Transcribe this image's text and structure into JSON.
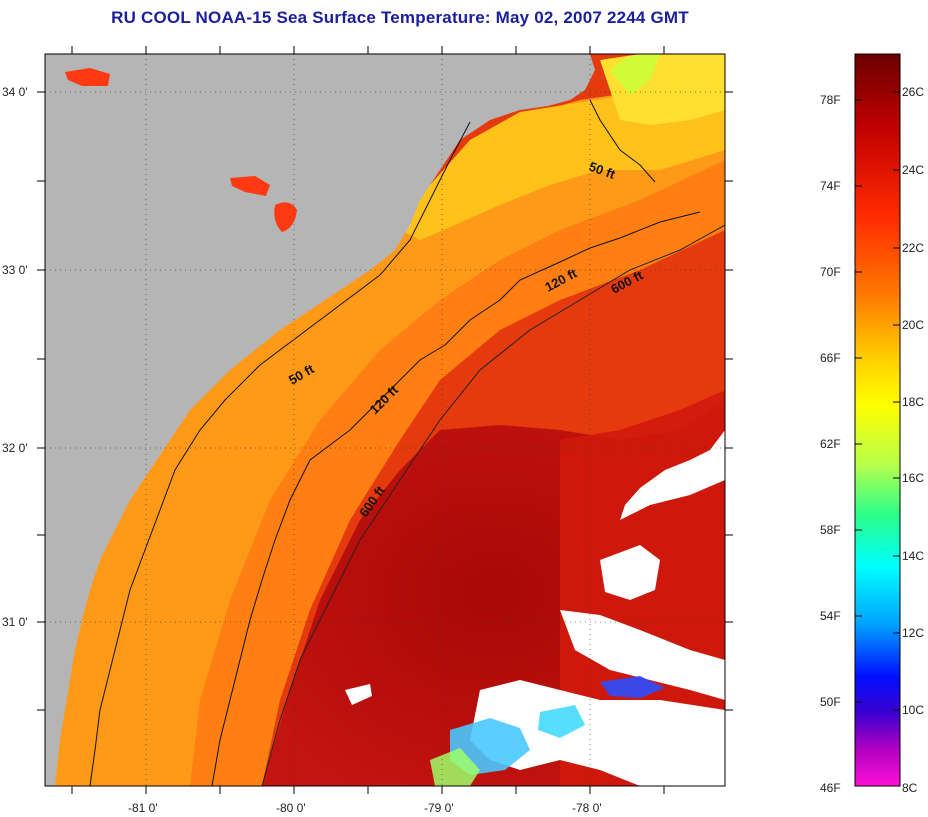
{
  "title": "RU COOL  NOAA-15  Sea Surface Temperature:  May 02, 2007 2244 GMT",
  "map": {
    "lat_labels": [
      "34 0'",
      "33 0'",
      "32 0'",
      "31 0'"
    ],
    "lon_labels": [
      "-81 0'",
      "-80 0'",
      "-79 0'",
      "-78 0'"
    ],
    "lat_range": [
      30.2,
      34.2
    ],
    "lon_range": [
      -81.7,
      -77.1
    ],
    "contours": [
      "50 ft",
      "120 ft",
      "600 ft"
    ],
    "colors": {
      "land": "#b5b5b5",
      "cloud": "#ffffff",
      "shelf_near": "#ffd21a",
      "shelf_mid": "#ff8a14",
      "gulf_stream": "#b80d0d",
      "offshore": "#e43a0e"
    }
  },
  "colorbar": {
    "fahrenheit_labels": [
      "78F",
      "74F",
      "70F",
      "66F",
      "62F",
      "58F",
      "54F",
      "50F",
      "46F"
    ],
    "celsius_labels": [
      "26C",
      "24C",
      "22C",
      "20C",
      "18C",
      "16C",
      "14C",
      "12C",
      "10C",
      "8C"
    ],
    "range_c": [
      8,
      27.2
    ],
    "stops": [
      "#6b0000",
      "#c00000",
      "#ff2a00",
      "#ff7a00",
      "#ffd200",
      "#ffff00",
      "#b8ff4a",
      "#2bff8a",
      "#00ffff",
      "#00a0ff",
      "#0010ff",
      "#3b00d0",
      "#b000c0",
      "#ff10d8"
    ]
  }
}
